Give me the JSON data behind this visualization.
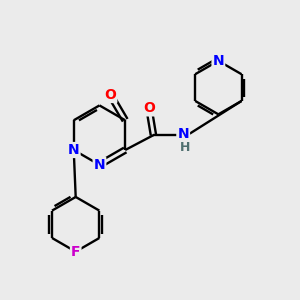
{
  "background_color": "#ebebeb",
  "bond_color": "#000000",
  "atom_colors": {
    "N": "#0000ff",
    "O": "#ff0000",
    "F": "#cc00cc",
    "H": "#507070",
    "C": "#000000"
  },
  "font_size": 10,
  "fig_size": [
    3.0,
    3.0
  ],
  "dpi": 100
}
